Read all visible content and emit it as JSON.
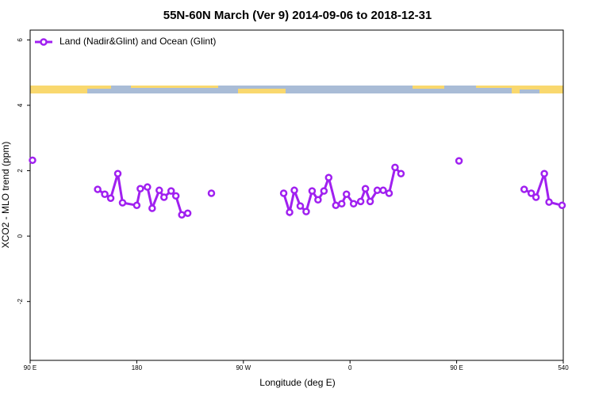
{
  "chart_data": {
    "type": "line",
    "title": "55N-60N March (Ver 9)   2014-09-06 to 2018-12-31",
    "x_label": "Longitude (deg E)",
    "y_label": "XCO2 - MLO trend (ppm)",
    "xlim": [
      90,
      540
    ],
    "ylim": [
      -3.8,
      6.3
    ],
    "xticks": [
      {
        "value": 90,
        "label": "90 E"
      },
      180,
      {
        "value": 270,
        "label": "90 W"
      },
      {
        "value": 360,
        "label": "0"
      },
      {
        "value": 450,
        "label": "90 E"
      },
      540
    ],
    "yticks": [
      -2,
      0,
      2,
      4,
      6
    ],
    "legend_position": "top-left",
    "series": [
      {
        "name": "Land (Nadir&Glint) and Ocean (Glint)",
        "color": "#a020f0",
        "x": [
          92,
          null,
          147,
          153,
          158,
          164,
          168,
          180,
          183,
          189,
          193,
          199,
          203,
          209,
          213,
          218,
          223,
          null,
          243,
          null,
          304,
          309,
          313,
          318,
          323,
          328,
          333,
          338,
          342,
          348,
          353,
          357,
          363,
          369,
          373,
          377,
          383,
          388,
          393,
          398,
          403,
          null,
          452,
          null,
          507,
          513,
          517,
          524,
          528,
          539
        ],
        "values": [
          2.32,
          null,
          1.43,
          1.28,
          1.16,
          1.91,
          1.02,
          0.94,
          1.45,
          1.5,
          0.85,
          1.4,
          1.19,
          1.38,
          1.23,
          0.65,
          0.7,
          null,
          1.31,
          null,
          1.31,
          0.73,
          1.4,
          0.92,
          0.75,
          1.38,
          1.11,
          1.38,
          1.79,
          0.94,
          0.99,
          1.28,
          0.99,
          1.06,
          1.45,
          1.06,
          1.4,
          1.4,
          1.31,
          2.1,
          1.91,
          null,
          2.3,
          null,
          1.43,
          1.31,
          1.19,
          1.91,
          1.04,
          0.94
        ]
      }
    ]
  }
}
